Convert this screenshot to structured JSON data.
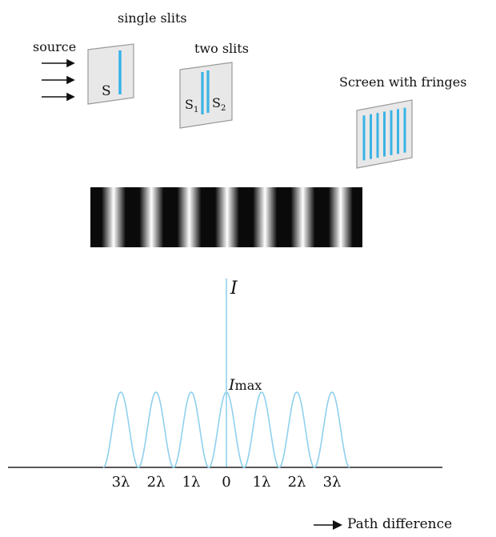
{
  "labels": {
    "single_slits": "single slits",
    "source": "source",
    "slit_s": "S",
    "two_slits": "two slits",
    "s1_main": "S",
    "s1_sub": "1",
    "s2_main": "S",
    "s2_sub": "2",
    "screen": "Screen with fringes",
    "intensity": "I",
    "imax_main": "I",
    "imax_sub": "max",
    "path_difference": "Path difference"
  },
  "colors": {
    "slit": "#3ab3e6",
    "curve": "#8fd0ee",
    "panel": "#e8e8e8",
    "panel_edge": "#9a9a9a",
    "fringe_dark": "#0a0a0a",
    "axis": "#222222"
  },
  "fringe_band": {
    "bright_fringe_count": 7
  },
  "chart_data": {
    "type": "line",
    "x_tick_labels": [
      "3λ",
      "2λ",
      "1λ",
      "0",
      "1λ",
      "2λ",
      "3λ"
    ],
    "x_tick_values": [
      -3,
      -2,
      -1,
      0,
      1,
      2,
      3
    ],
    "y_label": "I",
    "peak_label": "I max",
    "xlim": [
      -3.5,
      3.5
    ],
    "ylim": [
      0,
      1
    ],
    "series": [
      {
        "function": "cos^2(pi*x)",
        "peak_value": 1
      }
    ]
  }
}
